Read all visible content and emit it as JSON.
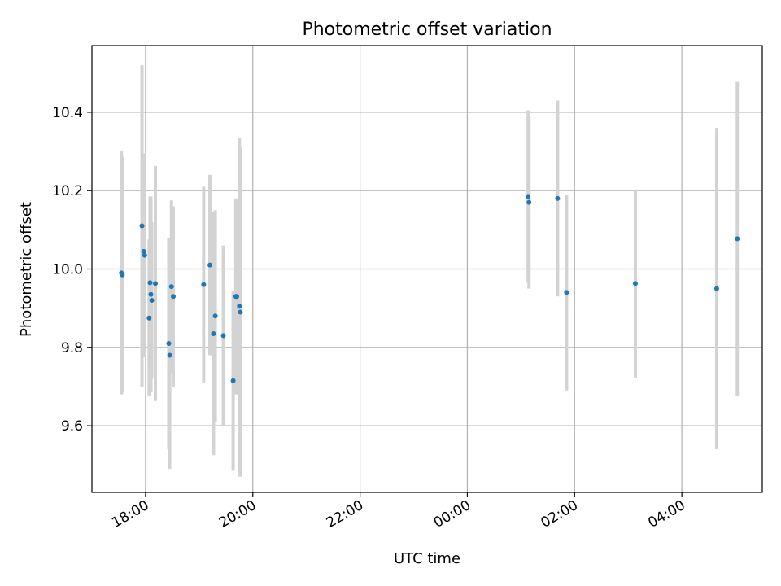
{
  "chart_data": {
    "type": "scatter",
    "title": "Photometric offset variation",
    "xlabel": "UTC time",
    "ylabel": "Photometric offset",
    "x_is_time": true,
    "xlim": [
      "17:00",
      "05:30"
    ],
    "ylim": [
      9.43,
      10.57
    ],
    "x_ticks": [
      "18:00",
      "20:00",
      "22:00",
      "00:00",
      "02:00",
      "04:00"
    ],
    "y_ticks": [
      9.6,
      9.8,
      10.0,
      10.2,
      10.4
    ],
    "y_tick_labels": [
      "9.6",
      "9.8",
      "10.0",
      "10.2",
      "10.4"
    ],
    "grid": true,
    "colors": {
      "point": "#1f77b4",
      "errorbar": "#d3d3d3",
      "grid": "#b0b0b0",
      "axis": "#000000"
    },
    "points": [
      {
        "t": "17:33",
        "y": 9.99,
        "err": 0.31
      },
      {
        "t": "17:34",
        "y": 9.985,
        "err": 0.3
      },
      {
        "t": "17:56",
        "y": 10.11,
        "err": 0.41
      },
      {
        "t": "17:58",
        "y": 10.045,
        "err": 0.25
      },
      {
        "t": "17:59",
        "y": 10.035,
        "err": 0.26
      },
      {
        "t": "18:04",
        "y": 9.875,
        "err": 0.2
      },
      {
        "t": "18:05",
        "y": 9.965,
        "err": 0.22
      },
      {
        "t": "18:06",
        "y": 9.935,
        "err": 0.25
      },
      {
        "t": "18:07",
        "y": 9.92,
        "err": 0.2
      },
      {
        "t": "18:11",
        "y": 9.963,
        "err": 0.3
      },
      {
        "t": "18:26",
        "y": 9.81,
        "err": 0.27
      },
      {
        "t": "18:27",
        "y": 9.78,
        "err": 0.29
      },
      {
        "t": "18:29",
        "y": 9.955,
        "err": 0.22
      },
      {
        "t": "18:31",
        "y": 9.93,
        "err": 0.23
      },
      {
        "t": "19:05",
        "y": 9.96,
        "err": 0.25
      },
      {
        "t": "19:12",
        "y": 10.01,
        "err": 0.23
      },
      {
        "t": "19:16",
        "y": 9.835,
        "err": 0.31
      },
      {
        "t": "19:18",
        "y": 9.88,
        "err": 0.27
      },
      {
        "t": "19:27",
        "y": 9.83,
        "err": 0.23
      },
      {
        "t": "19:38",
        "y": 9.715,
        "err": 0.23
      },
      {
        "t": "19:41",
        "y": 9.93,
        "err": 0.25
      },
      {
        "t": "19:42",
        "y": 9.93,
        "err": 0.25
      },
      {
        "t": "19:45",
        "y": 9.905,
        "err": 0.43
      },
      {
        "t": "19:46",
        "y": 9.89,
        "err": 0.42
      },
      {
        "t": "01:08",
        "y": 10.185,
        "err": 0.22
      },
      {
        "t": "01:09",
        "y": 10.17,
        "err": 0.22
      },
      {
        "t": "01:41",
        "y": 10.18,
        "err": 0.25
      },
      {
        "t": "01:51",
        "y": 9.94,
        "err": 0.25
      },
      {
        "t": "03:08",
        "y": 9.963,
        "err": 0.24
      },
      {
        "t": "04:39",
        "y": 9.95,
        "err": 0.41
      },
      {
        "t": "05:02",
        "y": 10.077,
        "err": 0.4
      }
    ]
  }
}
